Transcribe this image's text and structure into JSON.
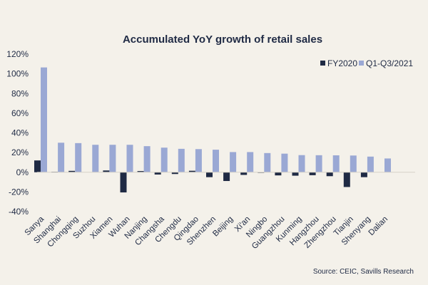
{
  "chart_data": {
    "type": "bar",
    "title": "Accumulated YoY growth of retail sales",
    "xlabel": "",
    "ylabel": "",
    "ylim": [
      -40,
      120
    ],
    "yticks": [
      -40,
      -20,
      0,
      20,
      40,
      60,
      80,
      100,
      120
    ],
    "ytick_labels": [
      "-40%",
      "-20%",
      "0%",
      "20%",
      "40%",
      "60%",
      "80%",
      "100%",
      "120%"
    ],
    "categories": [
      "Sanya",
      "Shanghai",
      "Chongqing",
      "Suzhou",
      "Xiamen",
      "Wuhan",
      "Nanjing",
      "Changsha",
      "Chengdu",
      "Qingdao",
      "Shenzhen",
      "Beijing",
      "Xi'an",
      "Ningbo",
      "Guangzhou",
      "Kunming",
      "Hangzhou",
      "Zhengzhou",
      "Tianjin",
      "Shenyang",
      "Dalian"
    ],
    "series": [
      {
        "name": "FY2020",
        "color": "#1f2a44",
        "values": [
          12.0,
          0.5,
          1.4,
          0,
          1.8,
          -20.5,
          1.2,
          -2.3,
          -1.8,
          1.5,
          -5.0,
          -8.9,
          -2.7,
          -0.6,
          -3.2,
          -3.5,
          -3.0,
          -4.0,
          -15.0,
          -5.0,
          0
        ]
      },
      {
        "name": "Q1-Q3/2021",
        "color": "#9aa8d4",
        "values": [
          106.5,
          30.0,
          29.6,
          27.9,
          27.9,
          27.9,
          26.5,
          25.0,
          23.8,
          23.5,
          22.9,
          20.5,
          20.5,
          19.5,
          18.9,
          17.4,
          17.3,
          17.2,
          17.0,
          15.9,
          14.0
        ]
      }
    ],
    "legend": "top-right",
    "grid": false
  },
  "source": "Source: CEIC, Savills Research"
}
